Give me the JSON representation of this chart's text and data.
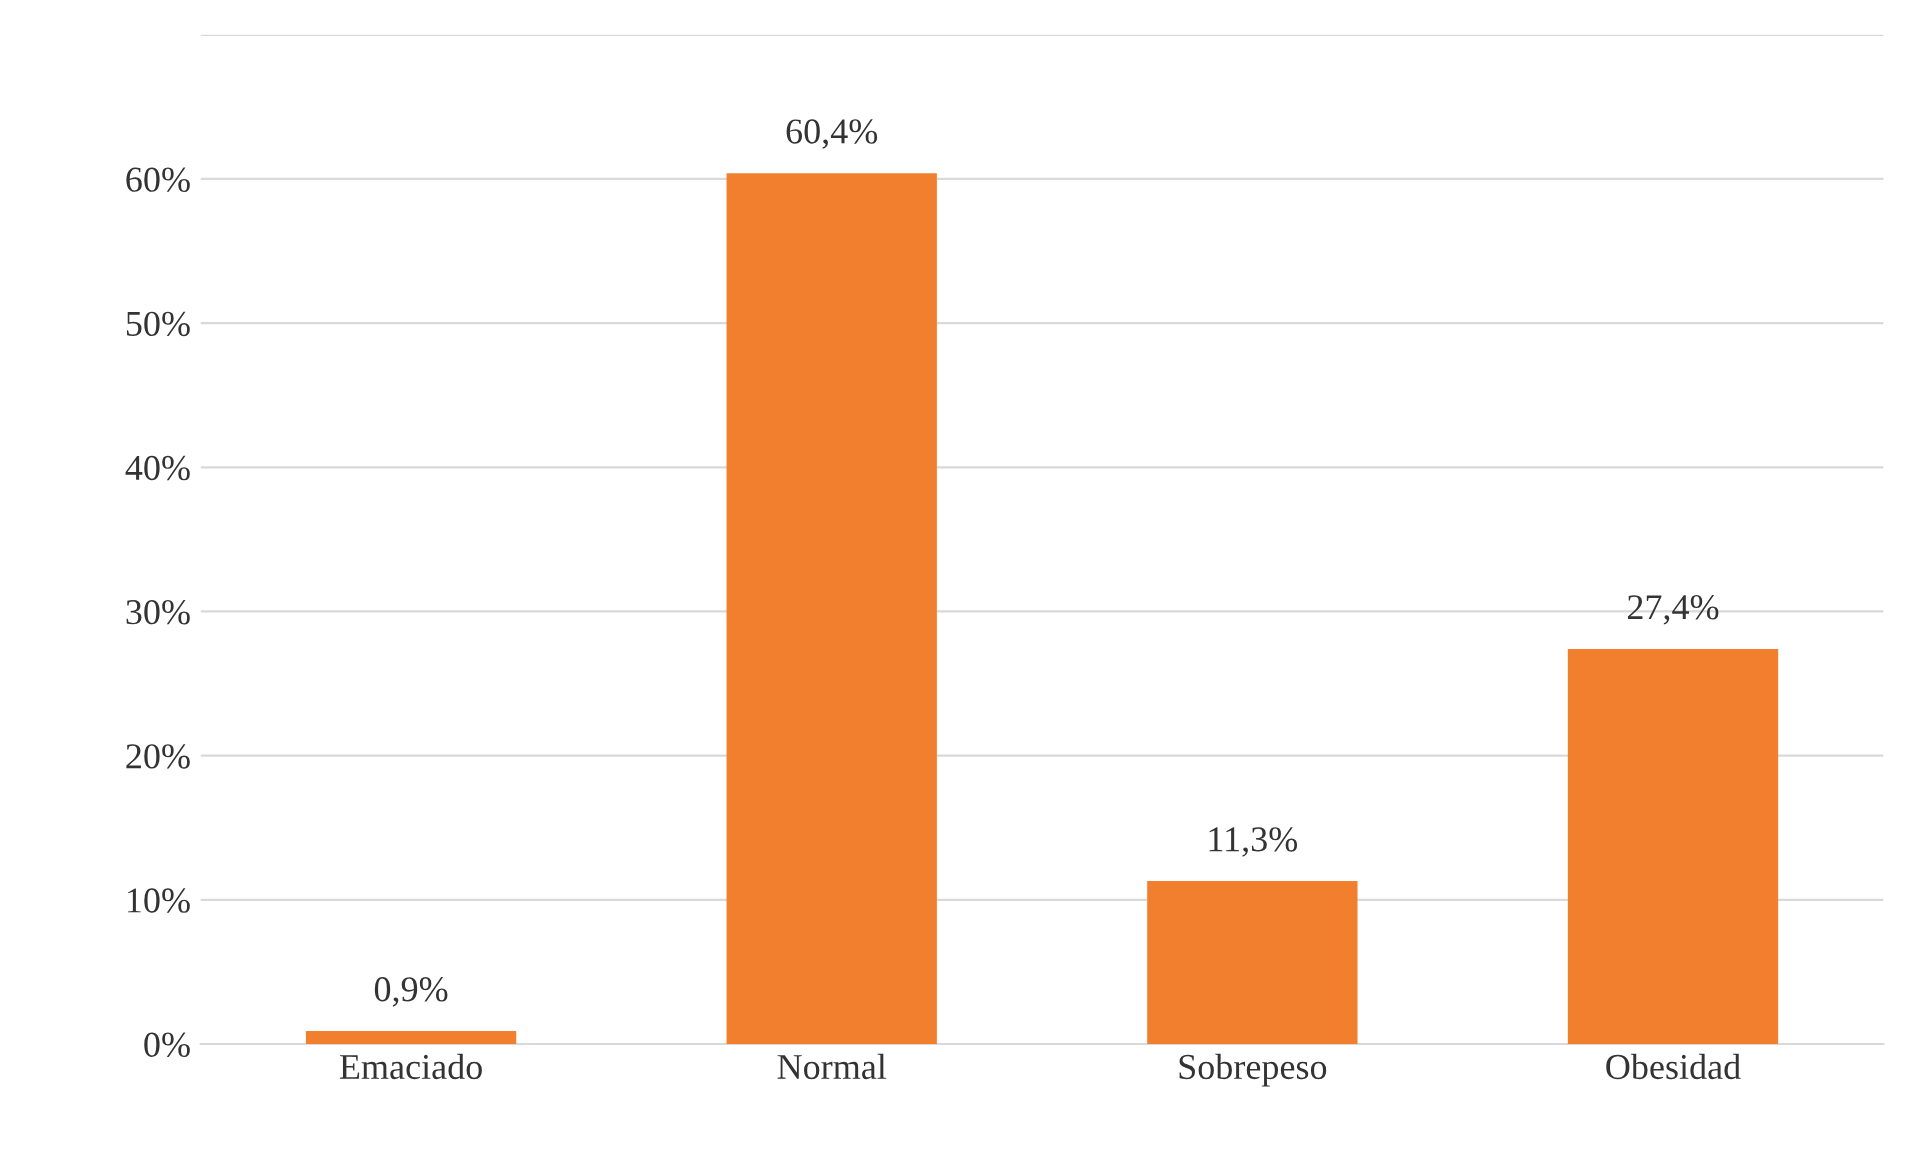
{
  "chart_data": {
    "type": "bar",
    "categories": [
      "Emaciado",
      "Normal",
      "Sobrepeso",
      "Obesidad"
    ],
    "values": [
      0.9,
      60.4,
      11.3,
      27.4
    ],
    "value_labels": [
      "0,9%",
      "60,4%",
      "11,3%",
      "27,4%"
    ],
    "color": "#f27f2d",
    "ylim": [
      0,
      70
    ],
    "yticks": [
      {
        "value": 0,
        "label": "0%"
      },
      {
        "value": 10,
        "label": "10%"
      },
      {
        "value": 20,
        "label": "20%"
      },
      {
        "value": 30,
        "label": "30%"
      },
      {
        "value": 40,
        "label": "40%"
      },
      {
        "value": 50,
        "label": "50%"
      },
      {
        "value": 60,
        "label": "60%"
      },
      {
        "value": 70,
        "label": null
      }
    ],
    "grid": "y",
    "legend": false
  }
}
